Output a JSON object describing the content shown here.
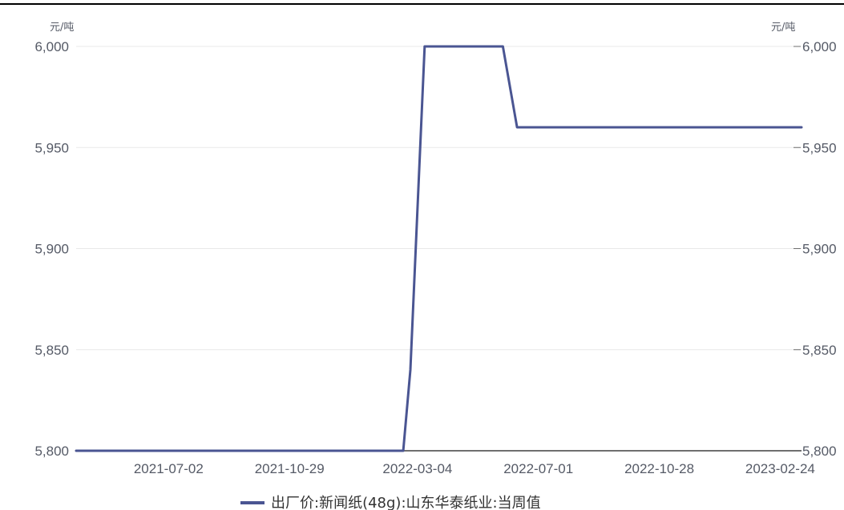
{
  "chart_data": {
    "type": "line",
    "y_unit_left": "元/吨",
    "y_unit_right": "元/吨",
    "ylim": [
      5800,
      6000
    ],
    "y_ticks": [
      "5,800",
      "5,850",
      "5,900",
      "5,950",
      "6,000"
    ],
    "y_tick_values": [
      5800,
      5850,
      5900,
      5950,
      6000
    ],
    "x_ticks": [
      "2021-07-02",
      "2021-10-29",
      "2022-03-04",
      "2022-07-01",
      "2022-10-28",
      "2023-02-24"
    ],
    "x_range": [
      "2021-04-02",
      "2023-03-17"
    ],
    "grid": true,
    "legend_position": "bottom",
    "series": [
      {
        "name": "出厂价:新闻纸(48g):山东华泰纸业:当周值",
        "color": "#4a5592",
        "points": [
          {
            "x": "2021-04-02",
            "y": 5800
          },
          {
            "x": "2022-02-18",
            "y": 5800
          },
          {
            "x": "2022-02-25",
            "y": 5840
          },
          {
            "x": "2022-03-11",
            "y": 6000
          },
          {
            "x": "2022-05-27",
            "y": 6000
          },
          {
            "x": "2022-06-10",
            "y": 5960
          },
          {
            "x": "2023-03-17",
            "y": 5960
          }
        ]
      }
    ]
  }
}
